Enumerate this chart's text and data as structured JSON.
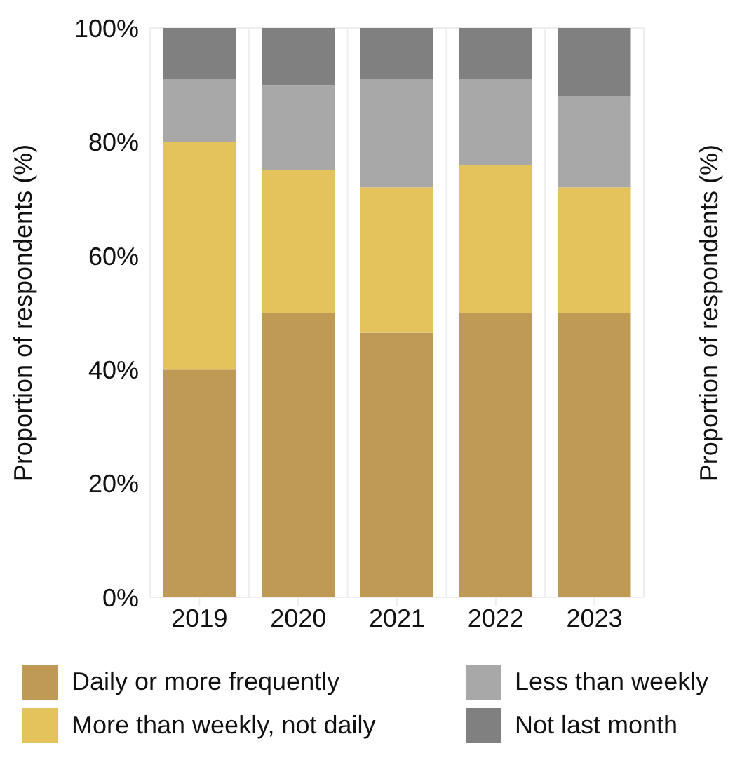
{
  "chart_data": {
    "type": "bar",
    "stacked": true,
    "ylabel": "Proportion of respondents (%)",
    "y2label": "Proportion of respondents (%)",
    "categories": [
      "2019",
      "2020",
      "2021",
      "2022",
      "2023"
    ],
    "series": [
      {
        "name": "Daily or more frequently",
        "color": "#bf9a55",
        "values": [
          40,
          50,
          46.5,
          50,
          50
        ]
      },
      {
        "name": "More than weekly, not daily",
        "color": "#e4c35c",
        "values": [
          40,
          25,
          25.5,
          26,
          22
        ]
      },
      {
        "name": "Less than weekly",
        "color": "#a8a8a8",
        "values": [
          11,
          15,
          19,
          15,
          16
        ]
      },
      {
        "name": "Not last month",
        "color": "#808080",
        "values": [
          9,
          10,
          9,
          9,
          12
        ]
      }
    ],
    "ylim": [
      0,
      100
    ],
    "yticks": [
      {
        "value": 0,
        "label": "0%"
      },
      {
        "value": 20,
        "label": "20%"
      },
      {
        "value": 40,
        "label": "40%"
      },
      {
        "value": 60,
        "label": "60%"
      },
      {
        "value": 80,
        "label": "80%"
      },
      {
        "value": 100,
        "label": "100%"
      }
    ],
    "grid": true,
    "legend": "bottom"
  }
}
